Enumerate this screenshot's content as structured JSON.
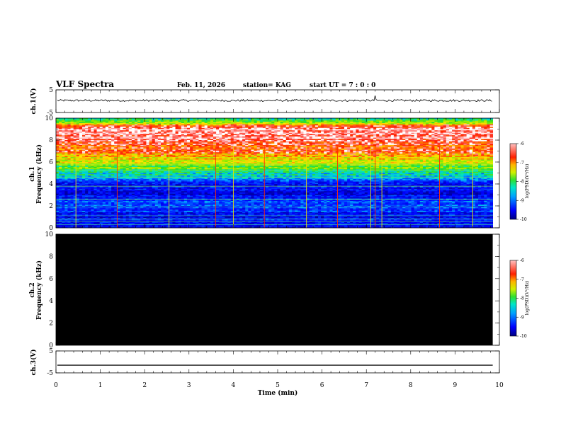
{
  "header": {
    "title": "VLF Spectra",
    "date": "Feb. 11, 2026",
    "station": "station= KAG",
    "start": "start  UT =   7 : 0  : 0"
  },
  "colors": {
    "background": "#ffffff",
    "axis": "#000000",
    "ch2_fill": "#000000",
    "colormap": [
      "#00007a",
      "#0000ff",
      "#0050ff",
      "#00b4ff",
      "#00e6b4",
      "#3cdc28",
      "#b4f000",
      "#ffdc00",
      "#ff7800",
      "#ff1400",
      "#ffb4b4",
      "#ffffff"
    ]
  },
  "chart_data": [
    {
      "id": "ch1_waveform",
      "type": "line",
      "ylabel": "ch.1(V)",
      "ylim": [
        -5,
        5
      ],
      "yticks": [
        "5",
        "-5"
      ],
      "xlim": [
        0,
        10
      ],
      "description_level": 0.3,
      "spike_times_min": [
        7.2
      ]
    },
    {
      "id": "ch1_spectrogram",
      "type": "heatmap",
      "ylabel": "ch.1\nFrequency (kHz)",
      "ylabel_lines": [
        "ch.1",
        "Frequency (kHz)"
      ],
      "ylim": [
        0,
        10
      ],
      "yticks": [
        "0",
        "2",
        "4",
        "6",
        "8",
        "10"
      ],
      "xlim": [
        0,
        9.85
      ],
      "log_psd_by_frequency_khz": [
        {
          "f": 0.0,
          "v": -9.6
        },
        {
          "f": 1.0,
          "v": -9.5
        },
        {
          "f": 2.0,
          "v": -9.1
        },
        {
          "f": 3.0,
          "v": -9.6
        },
        {
          "f": 4.0,
          "v": -9.4
        },
        {
          "f": 5.0,
          "v": -8.5
        },
        {
          "f": 6.0,
          "v": -7.8
        },
        {
          "f": 7.0,
          "v": -7.2
        },
        {
          "f": 8.0,
          "v": -6.7
        },
        {
          "f": 9.0,
          "v": -6.4
        },
        {
          "f": 9.6,
          "v": -7.8
        },
        {
          "f": 10.0,
          "v": -8.6
        }
      ],
      "impulse_times_min": [
        0.45,
        1.38,
        2.55,
        3.6,
        4.0,
        4.7,
        5.65,
        6.35,
        7.1,
        7.2,
        7.35,
        8.65,
        9.4
      ],
      "colorbar": {
        "label": "log(PSD)(V²/Hz)",
        "range": [
          -10,
          -6
        ],
        "ticks": [
          "-6",
          "-7",
          "-8",
          "-9",
          "-10"
        ]
      }
    },
    {
      "id": "ch2_spectrogram",
      "type": "heatmap",
      "ylabel": "ch.2\nFrequency (kHz)",
      "ylabel_lines": [
        "ch.2",
        "Frequency (kHz)"
      ],
      "ylim": [
        0,
        10
      ],
      "yticks": [
        "0",
        "2",
        "4",
        "6",
        "8",
        "10"
      ],
      "xlim": [
        0,
        9.85
      ],
      "log_psd_uniform": -11,
      "colorbar": {
        "label": "log(PSD)(V²/Hz)",
        "range": [
          -10,
          -6
        ],
        "ticks": [
          "-6",
          "-7",
          "-8",
          "-9",
          "-10"
        ]
      }
    },
    {
      "id": "ch3_waveform",
      "type": "line",
      "ylabel": "ch.3(V)",
      "ylim": [
        -5,
        5
      ],
      "yticks": [
        "5",
        "-5"
      ],
      "xlim": [
        0,
        10
      ],
      "level": -1.5
    }
  ],
  "xaxis": {
    "label": "Time  (min)",
    "range": [
      0,
      10
    ],
    "ticks": [
      "0",
      "1",
      "2",
      "3",
      "4",
      "5",
      "6",
      "7",
      "8",
      "9",
      "10"
    ]
  }
}
